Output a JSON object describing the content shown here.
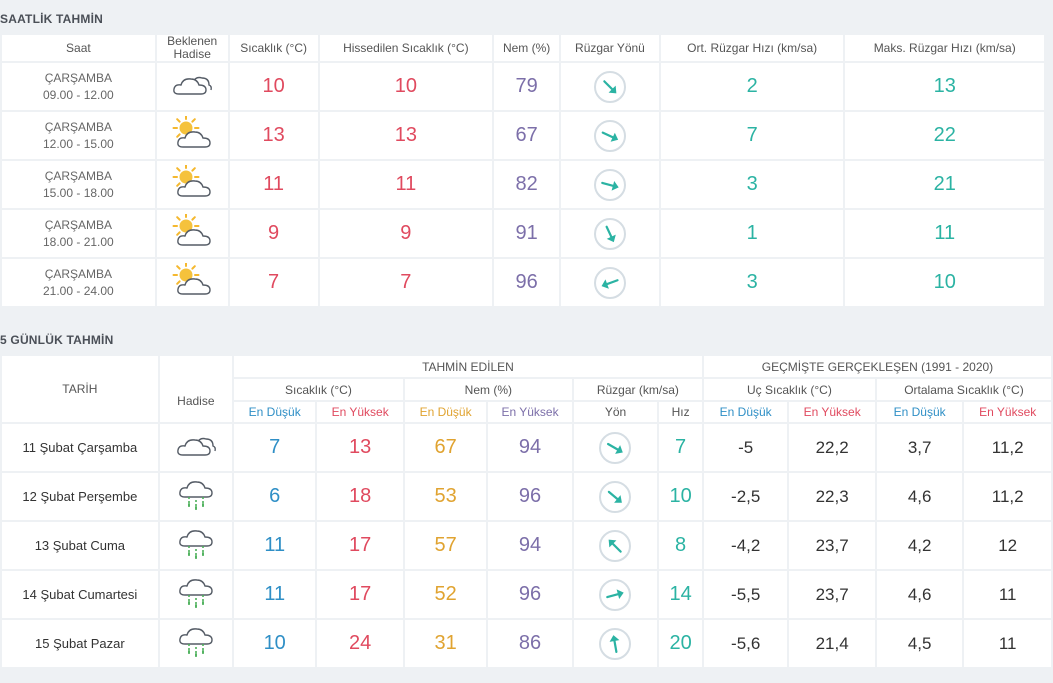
{
  "hourly": {
    "title": "SAATLİK TAHMİN",
    "headers": {
      "time": "Saat",
      "event": "Beklenen Hadise",
      "temp": "Sıcaklık (°C)",
      "feels": "Hissedilen Sıcaklık (°C)",
      "humidity": "Nem (%)",
      "wind_dir": "Rüzgar Yönü",
      "avg_wind": "Ort. Rüzgar Hızı (km/sa)",
      "max_wind": "Maks. Rüzgar Hızı (km/sa)"
    },
    "rows": [
      {
        "day": "ÇARŞAMBA",
        "range": "09.00 - 12.00",
        "icon": "cloudy-icon",
        "temp": "10",
        "feels": "10",
        "humidity": "79",
        "wind_deg": 135,
        "avg": "2",
        "max": "13"
      },
      {
        "day": "ÇARŞAMBA",
        "range": "12.00 - 15.00",
        "icon": "partly-sunny-icon",
        "temp": "13",
        "feels": "13",
        "humidity": "67",
        "wind_deg": 115,
        "avg": "7",
        "max": "22"
      },
      {
        "day": "ÇARŞAMBA",
        "range": "15.00 - 18.00",
        "icon": "partly-sunny-icon",
        "temp": "11",
        "feels": "11",
        "humidity": "82",
        "wind_deg": 105,
        "avg": "3",
        "max": "21"
      },
      {
        "day": "ÇARŞAMBA",
        "range": "18.00 - 21.00",
        "icon": "partly-sunny-icon",
        "temp": "9",
        "feels": "9",
        "humidity": "91",
        "wind_deg": 155,
        "avg": "1",
        "max": "11"
      },
      {
        "day": "ÇARŞAMBA",
        "range": "21.00 - 24.00",
        "icon": "partly-sunny-icon",
        "temp": "7",
        "feels": "7",
        "humidity": "96",
        "wind_deg": 250,
        "avg": "3",
        "max": "10"
      }
    ]
  },
  "daily": {
    "title": "5 GÜNLÜK TAHMİN",
    "headers": {
      "date": "TARİH",
      "event": "Hadise",
      "forecast_group": "TAHMİN EDİLEN",
      "past_group": "GEÇMİŞTE GERÇEKLEŞEN (1991 - 2020)",
      "temp": "Sıcaklık (°C)",
      "humidity": "Nem (%)",
      "wind": "Rüzgar (km/sa)",
      "extreme": "Uç Sıcaklık (°C)",
      "average": "Ortalama Sıcaklık (°C)",
      "low": "En Düşük",
      "high": "En Yüksek",
      "dir": "Yön",
      "speed": "Hız"
    },
    "rows": [
      {
        "date": "11 Şubat Çarşamba",
        "icon": "cloudy-icon",
        "tmin": "7",
        "tmax": "13",
        "hmin": "67",
        "hmax": "94",
        "wind_deg": 120,
        "speed": "7",
        "ext_low": "-5",
        "ext_high": "22,2",
        "avg_low": "3,7",
        "avg_high": "11,2"
      },
      {
        "date": "12 Şubat Perşembe",
        "icon": "rain-icon",
        "tmin": "6",
        "tmax": "18",
        "hmin": "53",
        "hmax": "96",
        "wind_deg": 130,
        "speed": "10",
        "ext_low": "-2,5",
        "ext_high": "22,3",
        "avg_low": "4,6",
        "avg_high": "11,2"
      },
      {
        "date": "13 Şubat Cuma",
        "icon": "rain-icon",
        "tmin": "11",
        "tmax": "17",
        "hmin": "57",
        "hmax": "94",
        "wind_deg": 315,
        "speed": "8",
        "ext_low": "-4,2",
        "ext_high": "23,7",
        "avg_low": "4,2",
        "avg_high": "12"
      },
      {
        "date": "14 Şubat Cumartesi",
        "icon": "rain-icon",
        "tmin": "11",
        "tmax": "17",
        "hmin": "52",
        "hmax": "96",
        "wind_deg": 75,
        "speed": "14",
        "ext_low": "-5,5",
        "ext_high": "23,7",
        "avg_low": "4,6",
        "avg_high": "11"
      },
      {
        "date": "15 Şubat Pazar",
        "icon": "rain-icon",
        "tmin": "10",
        "tmax": "24",
        "hmin": "31",
        "hmax": "86",
        "wind_deg": 350,
        "speed": "20",
        "ext_low": "-5,6",
        "ext_high": "21,4",
        "avg_low": "4,5",
        "avg_high": "11"
      }
    ]
  },
  "colors": {
    "red": "#e04a5f",
    "teal": "#2bb3a3",
    "blue": "#2f8fc6",
    "orange": "#e0a330",
    "purple": "#7c6fa9"
  }
}
